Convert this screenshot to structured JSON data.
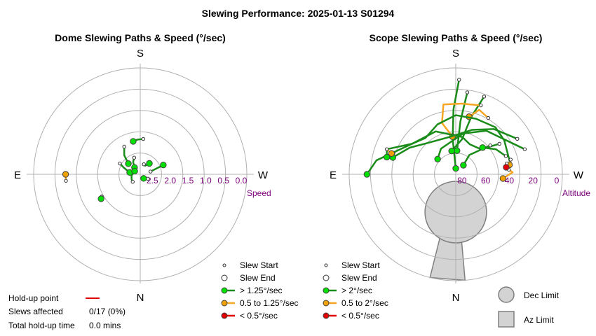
{
  "title": "Slewing Performance: 2025-01-13 S01294",
  "colors": {
    "fast": "#00e000",
    "fast_line": "#1a8c1a",
    "medium": "#f0a000",
    "medium_line": "#f5a623",
    "slow": "#e00000",
    "grid": "#b0b0b0",
    "axis_label": "#7a007a",
    "limit_fill": "#d3d3d3",
    "limit_stroke": "#808080"
  },
  "chart_data": [
    {
      "type": "scatter",
      "name": "dome",
      "title": "Dome Slewing Paths & Speed (°/sec)",
      "radial_label": "Speed",
      "radial_ticks": [
        "2.5",
        "2.0",
        "1.5",
        "1.0",
        "0.5",
        "0.0"
      ],
      "radial_values": [
        2.5,
        2.0,
        1.5,
        1.0,
        0.5,
        0.0
      ],
      "radial_range": [
        3.0,
        0.0
      ],
      "compass": {
        "top": "S",
        "bottom": "N",
        "left": "E",
        "right": "W"
      },
      "legend": [
        {
          "label": "Slew Start",
          "kind": "start"
        },
        {
          "label": "Slew End",
          "kind": "end"
        },
        {
          "label": "> 1.25°/sec",
          "kind": "fast"
        },
        {
          "label": "0.5 to 1.25°/sec",
          "kind": "medium"
        },
        {
          "label": "< 0.5°/sec",
          "kind": "slow"
        }
      ],
      "slews": [
        {
          "speed": "fast",
          "path": [
            [
              185,
              2.0
            ],
            [
              175,
              2.02
            ],
            [
              168,
              2.05
            ]
          ]
        },
        {
          "speed": "fast",
          "path": [
            [
              150,
              2.1
            ],
            [
              140,
              2.3
            ],
            [
              132,
              2.55
            ]
          ]
        },
        {
          "speed": "fast",
          "path": [
            [
              118,
              2.35
            ],
            [
              112,
              2.5
            ],
            [
              100,
              2.7
            ]
          ]
        },
        {
          "speed": "fast",
          "path": [
            [
              160,
              2.5
            ],
            [
              150,
              2.6
            ],
            [
              140,
              2.75
            ]
          ]
        },
        {
          "speed": "fast",
          "path": [
            [
              45,
              2.7
            ],
            [
              60,
              2.72
            ],
            [
              80,
              2.75
            ],
            [
              100,
              2.8
            ],
            [
              120,
              2.82
            ]
          ]
        },
        {
          "speed": "fast",
          "path": [
            [
              300,
              2.75
            ],
            [
              310,
              2.78
            ],
            [
              320,
              2.85
            ]
          ]
        },
        {
          "speed": "fast",
          "path": [
            [
              255,
              2.7
            ],
            [
              250,
              2.5
            ],
            [
              248,
              2.3
            ]
          ]
        },
        {
          "speed": "fast",
          "path": [
            [
              200,
              2.7
            ],
            [
              210,
              2.72
            ],
            [
              220,
              2.6
            ]
          ]
        },
        {
          "speed": "medium",
          "path": [
            [
              85,
              0.9
            ],
            [
              90,
              0.9
            ]
          ]
        },
        {
          "speed": "fast",
          "path": [
            [
              60,
              1.75
            ],
            [
              58,
              1.7
            ]
          ]
        }
      ],
      "holdup": {
        "label_point": "Hold-up point",
        "label_affected": "Slews affected",
        "value_affected": "0/17 (0%)",
        "label_total": "Total hold-up time",
        "value_total": "0.0 mins"
      }
    },
    {
      "type": "scatter",
      "name": "scope",
      "title": "Scope Slewing Paths & Speed (°/sec)",
      "radial_label": "Altitude",
      "radial_ticks": [
        "80",
        "60",
        "40",
        "20",
        "0"
      ],
      "radial_values": [
        80,
        60,
        40,
        20,
        0
      ],
      "radial_range": [
        90,
        0
      ],
      "compass": {
        "top": "S",
        "bottom": "N",
        "left": "E",
        "right": "W"
      },
      "legend": [
        {
          "label": "Slew Start",
          "kind": "start"
        },
        {
          "label": "Slew End",
          "kind": "end"
        },
        {
          "label": "> 2°/sec",
          "kind": "fast"
        },
        {
          "label": "0.5 to 2°/sec",
          "kind": "medium"
        },
        {
          "label": "< 0.5°/sec",
          "kind": "slow"
        }
      ],
      "limit_legend": [
        {
          "label": "Dec Limit",
          "kind": "dec"
        },
        {
          "label": "Az Limit",
          "kind": "az"
        }
      ],
      "dec_limit": {
        "az": 0,
        "alt": 58,
        "radius_alt": 26
      },
      "az_limit": {
        "az_from": -5,
        "az_to": 14,
        "alt_from": 45,
        "alt_to": 0
      },
      "slews": [
        {
          "speed": "fast",
          "path": [
            [
              182,
              10
            ],
            [
              178,
              35
            ],
            [
              175,
              60
            ],
            [
              180,
              85
            ]
          ]
        },
        {
          "speed": "fast",
          "path": [
            [
              188,
              20
            ],
            [
              185,
              45
            ],
            [
              183,
              70
            ]
          ]
        },
        {
          "speed": "fast",
          "path": [
            [
              200,
              20
            ],
            [
              195,
              40
            ],
            [
              190,
              60
            ],
            [
              170,
              70
            ]
          ]
        },
        {
          "speed": "medium",
          "path": [
            [
              200,
              28
            ],
            [
              185,
              30
            ],
            [
              170,
              30
            ],
            [
              165,
              45
            ],
            [
              175,
              58
            ]
          ]
        },
        {
          "speed": "medium",
          "path": [
            [
              210,
              35
            ],
            [
              200,
              32
            ],
            [
              193,
              40
            ]
          ]
        },
        {
          "speed": "fast",
          "path": [
            [
              240,
              30
            ],
            [
              220,
              40
            ],
            [
              200,
              50
            ],
            [
              170,
              58
            ],
            [
              140,
              55
            ],
            [
              120,
              45
            ],
            [
              105,
              35
            ]
          ]
        },
        {
          "speed": "fast",
          "path": [
            [
              250,
              28
            ],
            [
              215,
              45
            ],
            [
              190,
              55
            ],
            [
              150,
              65
            ],
            [
              130,
              70
            ]
          ]
        },
        {
          "speed": "fast",
          "path": [
            [
              235,
              45
            ],
            [
              225,
              60
            ],
            [
              205,
              62
            ],
            [
              190,
              58
            ],
            [
              155,
              50
            ],
            [
              125,
              45
            ],
            [
              100,
              22
            ],
            [
              90,
              15
            ]
          ]
        },
        {
          "speed": "fast",
          "path": [
            [
              230,
              52
            ],
            [
              215,
              70
            ],
            [
              220,
              80
            ]
          ]
        },
        {
          "speed": "fast",
          "path": [
            [
              250,
              45
            ],
            [
              238,
              50
            ],
            [
              225,
              58
            ]
          ]
        },
        {
          "speed": "fast",
          "path": [
            [
              260,
              43
            ],
            [
              235,
              40
            ],
            [
              220,
              38
            ],
            [
              200,
              40
            ],
            [
              180,
              40
            ],
            [
              160,
              45
            ],
            [
              140,
              50
            ],
            [
              125,
              45
            ],
            [
              110,
              28
            ],
            [
              104,
              30
            ]
          ]
        },
        {
          "speed": "medium",
          "path": [
            [
              265,
              45
            ],
            [
              268,
              42
            ],
            [
              275,
              50
            ]
          ]
        },
        {
          "speed": "medium",
          "path": [
            [
              255,
              42
            ],
            [
              260,
              44
            ]
          ]
        },
        {
          "speed": "slow",
          "path": [
            [
              258,
              46
            ],
            [
              262,
              47
            ]
          ]
        },
        {
          "speed": "medium",
          "path": [
            [
              110,
              28
            ],
            [
              108,
              33
            ]
          ]
        }
      ]
    }
  ]
}
